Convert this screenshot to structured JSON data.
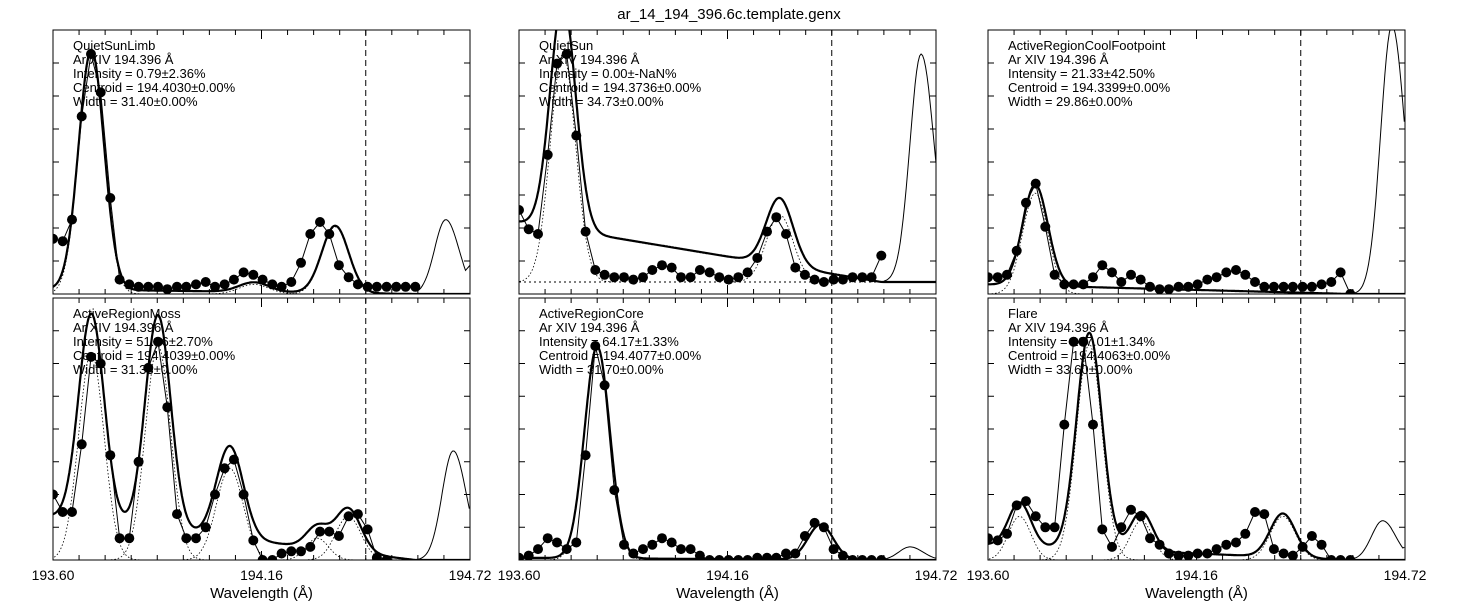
{
  "figure": {
    "title": "ar_14_194_396.6c.template.genx",
    "xlabel": "Wavelength (Å)",
    "xticks": [
      "193.60",
      "194.16",
      "194.72"
    ],
    "xlim": [
      193.6,
      194.72
    ],
    "line_marker": 194.44
  },
  "chart_data": [
    {
      "type": "line",
      "panel_name": "QuietSunLimb",
      "ion": "Ar XIV 194.396 Å",
      "intensity": "Intensity = 0.79±2.36%",
      "centroid": "Centroid = 194.4030±0.00%",
      "width": "Width = 31.40±0.00%",
      "xlabel": "Wavelength (Å)",
      "ylim": [
        0,
        1.1
      ],
      "baseline": 0.0,
      "x": [
        193.6,
        193.626,
        193.651,
        193.677,
        193.702,
        193.728,
        193.754,
        193.779,
        193.805,
        193.83,
        193.856,
        193.882,
        193.907,
        193.933,
        193.958,
        193.984,
        194.01,
        194.035,
        194.061,
        194.086,
        194.112,
        194.138,
        194.163,
        194.189,
        194.214,
        194.24,
        194.266,
        194.291,
        194.317,
        194.342,
        194.368,
        194.394,
        194.419,
        194.445,
        194.47,
        194.496,
        194.522,
        194.547,
        194.573
      ],
      "y": [
        0.23,
        0.22,
        0.31,
        0.74,
        1.0,
        0.84,
        0.4,
        0.06,
        0.04,
        0.03,
        0.03,
        0.03,
        0.02,
        0.03,
        0.03,
        0.04,
        0.05,
        0.03,
        0.04,
        0.06,
        0.09,
        0.08,
        0.06,
        0.04,
        0.03,
        0.05,
        0.13,
        0.25,
        0.3,
        0.25,
        0.12,
        0.07,
        0.04,
        0.03,
        0.03,
        0.03,
        0.03,
        0.03,
        0.03
      ],
      "fit_ends": [
        0.02,
        0.0
      ],
      "fit_peaks": [
        {
          "c": 193.703,
          "a": 1.0,
          "s": 0.034
        },
        {
          "c": 194.14,
          "a": 0.04,
          "s": 0.04
        },
        {
          "c": 194.358,
          "a": 0.28,
          "s": 0.036
        }
      ],
      "neighbor": {
        "x0": 194.58,
        "x1": 194.72,
        "peak_x": 194.655,
        "peak_y": 0.31,
        "end_y": 0.12
      }
    },
    {
      "type": "line",
      "panel_name": "QuietSun",
      "ion": "Ar XIV 194.396 Å",
      "intensity": "Intensity = 0.00±-NaN%",
      "centroid": "Centroid = 194.3736±0.00%",
      "width": "Width = 34.73±0.00%",
      "xlabel": "Wavelength (Å)",
      "ylim": [
        0,
        1.1
      ],
      "baseline": 0.05,
      "x": [
        193.6,
        193.626,
        193.651,
        193.677,
        193.702,
        193.728,
        193.754,
        193.779,
        193.805,
        193.83,
        193.856,
        193.882,
        193.907,
        193.933,
        193.958,
        193.984,
        194.01,
        194.035,
        194.061,
        194.086,
        194.112,
        194.138,
        194.163,
        194.189,
        194.214,
        194.24,
        194.266,
        194.291,
        194.317,
        194.342,
        194.368,
        194.394,
        194.419,
        194.445,
        194.47,
        194.496,
        194.522,
        194.547,
        194.573
      ],
      "y": [
        0.35,
        0.27,
        0.25,
        0.58,
        0.96,
        1.0,
        0.66,
        0.26,
        0.1,
        0.08,
        0.07,
        0.07,
        0.06,
        0.07,
        0.1,
        0.12,
        0.11,
        0.07,
        0.07,
        0.1,
        0.09,
        0.07,
        0.06,
        0.07,
        0.09,
        0.15,
        0.26,
        0.32,
        0.25,
        0.11,
        0.08,
        0.06,
        0.05,
        0.06,
        0.06,
        0.07,
        0.07,
        0.07,
        0.16
      ],
      "fit_ends": [
        0.3,
        0.05
      ],
      "fit_peaks": [
        {
          "c": 193.718,
          "a": 0.95,
          "s": 0.034
        },
        {
          "c": 194.3,
          "a": 0.28,
          "s": 0.036
        }
      ],
      "neighbor": {
        "x0": 194.58,
        "x1": 194.72,
        "peak_x": 194.68,
        "peak_y": 0.95,
        "end_y": 0.33
      }
    },
    {
      "type": "line",
      "panel_name": "ActiveRegionCoolFootpoint",
      "ion": "Ar XIV 194.396 Å",
      "intensity": "Intensity = 21.33±42.50%",
      "centroid": "Centroid = 194.3399±0.00%",
      "width": "Width = 29.86±0.00%",
      "xlabel": "Wavelength (Å)",
      "ylim": [
        0,
        1.1
      ],
      "baseline": 0.0,
      "x": [
        193.6,
        193.626,
        193.651,
        193.677,
        193.702,
        193.728,
        193.754,
        193.779,
        193.805,
        193.83,
        193.856,
        193.882,
        193.907,
        193.933,
        193.958,
        193.984,
        194.01,
        194.035,
        194.061,
        194.086,
        194.112,
        194.138,
        194.163,
        194.189,
        194.214,
        194.24,
        194.266,
        194.291,
        194.317,
        194.342,
        194.368,
        194.394,
        194.419,
        194.445,
        194.47,
        194.496,
        194.522,
        194.547,
        194.573
      ],
      "y": [
        0.07,
        0.07,
        0.08,
        0.18,
        0.38,
        0.46,
        0.28,
        0.08,
        0.04,
        0.04,
        0.04,
        0.07,
        0.12,
        0.09,
        0.05,
        0.08,
        0.06,
        0.03,
        0.02,
        0.02,
        0.03,
        0.03,
        0.04,
        0.06,
        0.07,
        0.09,
        0.1,
        0.08,
        0.05,
        0.03,
        0.03,
        0.03,
        0.03,
        0.03,
        0.03,
        0.04,
        0.05,
        0.09,
        0.0
      ],
      "fit_ends": [
        0.04,
        0.0
      ],
      "fit_peaks": [
        {
          "c": 193.727,
          "a": 0.42,
          "s": 0.034
        }
      ],
      "neighbor": {
        "x0": 194.57,
        "x1": 194.72,
        "peak_x": 194.685,
        "peak_y": 1.12,
        "end_y": 0.5
      }
    },
    {
      "type": "line",
      "panel_name": "ActiveRegionMoss",
      "ion": "Ar XIV 194.396 Å",
      "intensity": "Intensity = 51.36±2.70%",
      "centroid": "Centroid = 194.4039±0.00%",
      "width": "Width = 31.33±0.00%",
      "xlabel": "Wavelength (Å)",
      "ylim": [
        0,
        1.2
      ],
      "baseline": 0.0,
      "x": [
        193.6,
        193.626,
        193.651,
        193.677,
        193.702,
        193.728,
        193.754,
        193.779,
        193.805,
        193.83,
        193.856,
        193.882,
        193.907,
        193.933,
        193.958,
        193.984,
        194.01,
        194.035,
        194.061,
        194.086,
        194.112,
        194.138,
        194.163,
        194.189,
        194.214,
        194.24,
        194.266,
        194.291,
        194.317,
        194.342,
        194.368,
        194.394,
        194.419,
        194.445,
        194.47,
        194.496,
        194.522,
        194.547,
        194.573
      ],
      "y": [
        0.3,
        0.22,
        0.22,
        0.53,
        0.93,
        0.9,
        0.48,
        0.1,
        0.1,
        0.45,
        0.88,
        1.0,
        0.7,
        0.21,
        0.1,
        0.1,
        0.15,
        0.3,
        0.42,
        0.46,
        0.3,
        0.09,
        0.0,
        0.0,
        0.03,
        0.04,
        0.04,
        0.06,
        0.13,
        0.13,
        0.11,
        0.2,
        0.21,
        0.14,
        0.01,
        0.0,
        -0.02,
        -0.02,
        -0.02
      ],
      "fit_ends": [
        0.2,
        0.0
      ],
      "fit_peaks": [
        {
          "c": 193.703,
          "a": 0.95,
          "s": 0.034
        },
        {
          "c": 193.882,
          "a": 0.98,
          "s": 0.034
        },
        {
          "c": 194.075,
          "a": 0.42,
          "s": 0.036
        },
        {
          "c": 194.393,
          "a": 0.2,
          "s": 0.034
        },
        {
          "c": 194.31,
          "a": 0.1,
          "s": 0.03
        }
      ],
      "neighbor": {
        "x0": 194.57,
        "x1": 194.72,
        "peak_x": 194.675,
        "peak_y": 0.5,
        "end_y": 0.08
      }
    },
    {
      "type": "line",
      "panel_name": "ActiveRegionCore",
      "ion": "Ar XIV 194.396 Å",
      "intensity": "Intensity = 64.17±1.33%",
      "centroid": "Centroid = 194.4077±0.00%",
      "width": "Width = 31.70±0.00%",
      "xlabel": "Wavelength (Å)",
      "ylim": [
        0,
        1.2
      ],
      "baseline": 0.0,
      "x": [
        193.6,
        193.626,
        193.651,
        193.677,
        193.702,
        193.728,
        193.754,
        193.779,
        193.805,
        193.83,
        193.856,
        193.882,
        193.907,
        193.933,
        193.958,
        193.984,
        194.01,
        194.035,
        194.061,
        194.086,
        194.112,
        194.138,
        194.163,
        194.189,
        194.214,
        194.24,
        194.266,
        194.291,
        194.317,
        194.342,
        194.368,
        194.394,
        194.419,
        194.445,
        194.47,
        194.496,
        194.522,
        194.547,
        194.573
      ],
      "y": [
        0.01,
        0.02,
        0.05,
        0.1,
        0.08,
        0.05,
        0.08,
        0.48,
        0.98,
        0.8,
        0.32,
        0.07,
        0.03,
        0.05,
        0.07,
        0.1,
        0.08,
        0.05,
        0.05,
        0.02,
        0.0,
        0.0,
        0.0,
        0.0,
        0.0,
        0.01,
        0.01,
        0.01,
        0.03,
        0.03,
        0.11,
        0.17,
        0.15,
        0.05,
        0.02,
        0.0,
        0.0,
        0.0,
        0.0
      ],
      "fit_ends": [
        0.01,
        0.0
      ],
      "fit_peaks": [
        {
          "c": 193.81,
          "a": 0.97,
          "s": 0.034
        },
        {
          "c": 194.41,
          "a": 0.16,
          "s": 0.034
        }
      ],
      "neighbor": {
        "x0": 194.58,
        "x1": 194.72,
        "peak_x": 194.65,
        "peak_y": 0.06,
        "end_y": 0.0
      }
    },
    {
      "type": "line",
      "panel_name": "Flare",
      "ion": "Ar XIV 194.396 Å",
      "intensity": "Intensity = 197.01±1.34%",
      "centroid": "Centroid = 194.4063±0.00%",
      "width": "Width = 33.60±0.00%",
      "xlabel": "Wavelength (Å)",
      "ylim": [
        0,
        1.2
      ],
      "baseline": 0.0,
      "x": [
        193.6,
        193.626,
        193.651,
        193.677,
        193.702,
        193.728,
        193.754,
        193.779,
        193.805,
        193.83,
        193.856,
        193.882,
        193.907,
        193.933,
        193.958,
        193.984,
        194.01,
        194.035,
        194.061,
        194.086,
        194.112,
        194.138,
        194.163,
        194.189,
        194.214,
        194.24,
        194.266,
        194.291,
        194.317,
        194.342,
        194.368,
        194.394,
        194.419,
        194.445,
        194.47,
        194.496,
        194.522,
        194.547,
        194.573
      ],
      "y": [
        0.1,
        0.09,
        0.12,
        0.25,
        0.27,
        0.2,
        0.15,
        0.15,
        0.62,
        1.0,
        1.0,
        0.62,
        0.14,
        0.06,
        0.15,
        0.23,
        0.2,
        0.1,
        0.07,
        0.03,
        0.02,
        0.02,
        0.03,
        0.03,
        0.05,
        0.07,
        0.08,
        0.12,
        0.22,
        0.21,
        0.05,
        0.03,
        0.02,
        0.06,
        0.11,
        0.07,
        0.0,
        0.0,
        0.0
      ],
      "fit_ends": [
        0.07,
        0.0
      ],
      "fit_peaks": [
        {
          "c": 193.872,
          "a": 0.99,
          "s": 0.034
        },
        {
          "c": 193.685,
          "a": 0.2,
          "s": 0.03
        },
        {
          "c": 194.012,
          "a": 0.18,
          "s": 0.03
        },
        {
          "c": 194.392,
          "a": 0.2,
          "s": 0.034
        }
      ],
      "neighbor": {
        "x0": 194.57,
        "x1": 194.72,
        "peak_x": 194.66,
        "peak_y": 0.18,
        "end_y": 0.06
      }
    }
  ]
}
